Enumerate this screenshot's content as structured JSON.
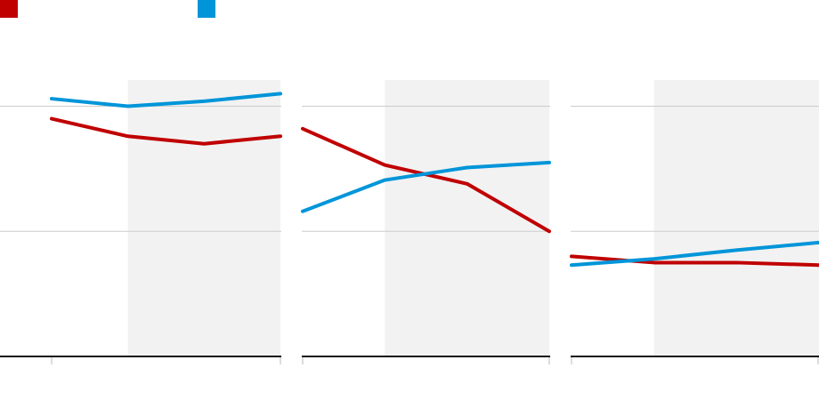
{
  "colors": {
    "series_a": "#c00000",
    "series_b": "#0095d9",
    "shading": "#f2f2f2",
    "grid": "#cccccc",
    "baseline": "#111111"
  },
  "legend": {
    "items": [
      {
        "name": "",
        "color": "#c00000"
      },
      {
        "name": "",
        "color": "#0095d9"
      }
    ]
  },
  "chart_data": [
    {
      "type": "line",
      "title": "",
      "x": [
        0,
        1,
        2,
        3
      ],
      "ylim": [
        0,
        100
      ],
      "grid": true,
      "shaded_x_range": [
        1,
        3
      ],
      "series": [
        {
          "name": "",
          "color": "#c00000",
          "values": [
            95,
            88,
            85,
            88
          ]
        },
        {
          "name": "",
          "color": "#0095d9",
          "values": [
            103,
            100,
            102,
            105
          ]
        }
      ]
    },
    {
      "type": "line",
      "title": "",
      "x": [
        0,
        1,
        2,
        3
      ],
      "ylim": [
        0,
        100
      ],
      "grid": true,
      "shaded_x_range": [
        1,
        3
      ],
      "series": [
        {
          "name": "",
          "color": "#c00000",
          "values": [
            91,
            76.5,
            69,
            50
          ]
        },
        {
          "name": "",
          "color": "#0095d9",
          "values": [
            58,
            70.5,
            75.5,
            77.5
          ]
        }
      ]
    },
    {
      "type": "line",
      "title": "",
      "x": [
        0,
        1,
        2,
        3
      ],
      "ylim": [
        0,
        100
      ],
      "grid": true,
      "shaded_x_range": [
        1,
        3
      ],
      "series": [
        {
          "name": "",
          "color": "#c00000",
          "values": [
            40,
            37.5,
            37.5,
            36.5
          ]
        },
        {
          "name": "",
          "color": "#0095d9",
          "values": [
            36.5,
            39,
            42.5,
            45.5
          ]
        }
      ]
    }
  ]
}
